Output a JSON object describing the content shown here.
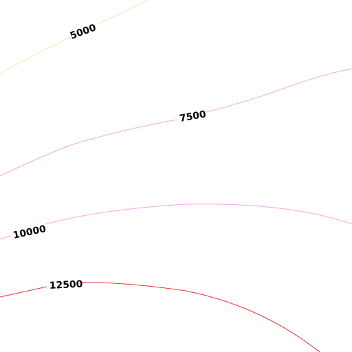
{
  "contours": [
    {
      "label": "5000",
      "color": "#efe7b8"
    },
    {
      "label": "7500",
      "color": "#f2a4f2"
    },
    {
      "label": "10000",
      "color": "#f5a3ec"
    },
    {
      "label": "12500",
      "color": "#e8302e"
    }
  ]
}
